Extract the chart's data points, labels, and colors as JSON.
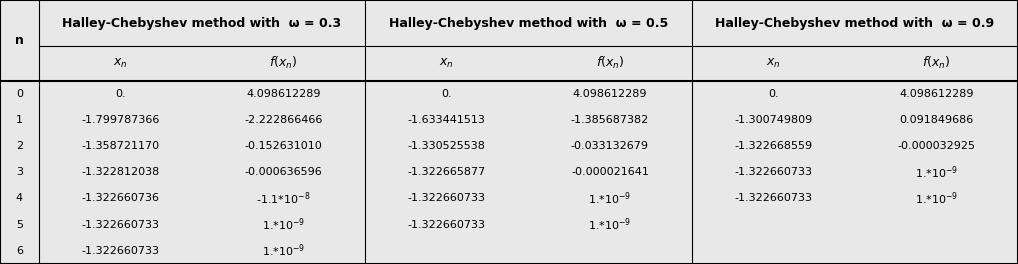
{
  "headers_top": [
    "Halley-Chebyshev method with  ω = 0.3",
    "Halley-Chebyshev method with  ω = 0.5",
    "Halley-Chebyshev method with  ω = 0.9"
  ],
  "rows": [
    [
      "0",
      "0.",
      "4.098612289",
      "0.",
      "4.098612289",
      "0.",
      "4.098612289"
    ],
    [
      "1",
      "-1.799787366",
      "-2.222866466",
      "-1.633441513",
      "-1.385687382",
      "-1.300749809",
      "0.091849686"
    ],
    [
      "2",
      "-1.358721170",
      "-0.152631010",
      "-1.330525538",
      "-0.033132679",
      "-1.322668559",
      "-0.000032925"
    ],
    [
      "3",
      "-1.322812038",
      "-0.000636596",
      "-1.322665877",
      "-0.000021641",
      "-1.322660733",
      "1.*10^{-9}"
    ],
    [
      "4",
      "-1.322660736",
      "-1.1*10^{-8}",
      "-1.322660733",
      "1.*10^{-9}",
      "-1.322660733",
      "1.*10^{-9}"
    ],
    [
      "5",
      "-1.322660733",
      "1.*10^{-9}",
      "-1.322660733",
      "1.*10^{-9}",
      "",
      ""
    ],
    [
      "6",
      "-1.322660733",
      "1.*10^{-9}",
      "",
      "",
      "",
      ""
    ]
  ],
  "background_color": "#e8e8e8",
  "line_color": "#000000",
  "text_color": "#000000",
  "font_size": 8.0,
  "header_font_size": 9.0,
  "sub_header_font_size": 9.0
}
